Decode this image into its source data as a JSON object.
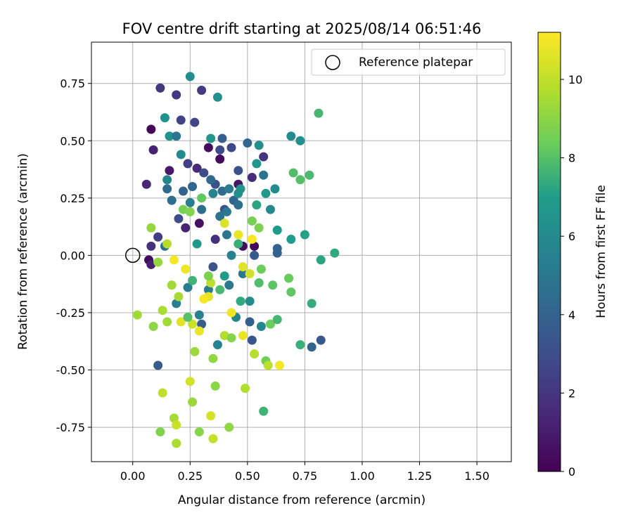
{
  "chart_data": {
    "type": "scatter",
    "title": "FOV centre drift starting at 2025/08/14 06:51:46",
    "xlabel": "Angular distance from reference (arcmin)",
    "ylabel": "Rotation from reference (arcmin)",
    "xlim": [
      -0.18,
      1.65
    ],
    "ylim": [
      -0.9,
      0.93
    ],
    "xticks": [
      "0.00",
      "0.25",
      "0.50",
      "0.75",
      "1.00",
      "1.25",
      "1.50"
    ],
    "yticks": [
      "-0.75",
      "-0.50",
      "-0.25",
      "0.00",
      "0.25",
      "0.50",
      "0.75"
    ],
    "grid": true,
    "legend": {
      "placement": "top-right",
      "entries": [
        "Reference platepar"
      ]
    },
    "reference_point": {
      "x": 0.0,
      "y": 0.0,
      "label": "Reference platepar"
    },
    "colorbar": {
      "label": "Hours from first FF file",
      "range": [
        0,
        11.2
      ],
      "ticks": [
        "0",
        "2",
        "4",
        "6",
        "8",
        "10"
      ],
      "colormap": [
        "#440154",
        "#482777",
        "#3f4a8a",
        "#31678e",
        "#26838f",
        "#1f9d8a",
        "#6cce5a",
        "#b6de2b",
        "#fee825"
      ]
    },
    "points": [
      {
        "x": 0.08,
        "y": 0.55,
        "h": 0.2
      },
      {
        "x": 0.38,
        "y": 0.42,
        "h": 0.4
      },
      {
        "x": 0.07,
        "y": -0.02,
        "h": 0.3
      },
      {
        "x": 0.48,
        "y": 0.04,
        "h": 0.5
      },
      {
        "x": 0.53,
        "y": 0.04,
        "h": 0.3
      },
      {
        "x": 0.29,
        "y": 0.14,
        "h": 0.6
      },
      {
        "x": 0.33,
        "y": 0.47,
        "h": 0.4
      },
      {
        "x": 0.46,
        "y": 0.31,
        "h": 0.7
      },
      {
        "x": 0.16,
        "y": 0.37,
        "h": 0.9
      },
      {
        "x": 0.09,
        "y": 0.46,
        "h": 1.2
      },
      {
        "x": 0.06,
        "y": 0.31,
        "h": 1.4
      },
      {
        "x": 0.08,
        "y": -0.04,
        "h": 1.1
      },
      {
        "x": 0.23,
        "y": 0.12,
        "h": 1.3
      },
      {
        "x": 0.28,
        "y": 0.38,
        "h": 1.5
      },
      {
        "x": 0.52,
        "y": 0.34,
        "h": 1.6
      },
      {
        "x": 0.36,
        "y": 0.07,
        "h": 1.7
      },
      {
        "x": 0.57,
        "y": 0.43,
        "h": 1.9
      },
      {
        "x": 0.12,
        "y": 0.73,
        "h": 2.0
      },
      {
        "x": 0.19,
        "y": 0.7,
        "h": 2.1
      },
      {
        "x": 0.3,
        "y": 0.72,
        "h": 2.2
      },
      {
        "x": 0.08,
        "y": 0.04,
        "h": 1.8
      },
      {
        "x": 0.11,
        "y": 0.08,
        "h": 2.3
      },
      {
        "x": 0.24,
        "y": 0.4,
        "h": 2.4
      },
      {
        "x": 0.21,
        "y": 0.59,
        "h": 2.5
      },
      {
        "x": 0.27,
        "y": 0.58,
        "h": 2.6
      },
      {
        "x": 0.43,
        "y": 0.47,
        "h": 2.7
      },
      {
        "x": 0.38,
        "y": 0.46,
        "h": 2.8
      },
      {
        "x": 0.31,
        "y": 0.36,
        "h": 2.9
      },
      {
        "x": 0.2,
        "y": 0.16,
        "h": 3.0
      },
      {
        "x": 0.36,
        "y": 0.31,
        "h": 3.1
      },
      {
        "x": 0.4,
        "y": 0.2,
        "h": 3.2
      },
      {
        "x": 0.46,
        "y": 0.37,
        "h": 3.3
      },
      {
        "x": 0.52,
        "y": -0.37,
        "h": 3.4
      },
      {
        "x": 0.82,
        "y": -0.37,
        "h": 3.5
      },
      {
        "x": 0.11,
        "y": -0.48,
        "h": 3.6
      },
      {
        "x": 0.3,
        "y": -0.3,
        "h": 3.7
      },
      {
        "x": 0.51,
        "y": -0.29,
        "h": 3.8
      },
      {
        "x": 0.63,
        "y": 0.03,
        "h": 3.9
      },
      {
        "x": 0.63,
        "y": 0.01,
        "h": 4.0
      },
      {
        "x": 0.78,
        "y": -0.4,
        "h": 4.1
      },
      {
        "x": 0.22,
        "y": 0.28,
        "h": 4.0
      },
      {
        "x": 0.26,
        "y": 0.3,
        "h": 4.2
      },
      {
        "x": 0.34,
        "y": 0.33,
        "h": 4.3
      },
      {
        "x": 0.39,
        "y": 0.28,
        "h": 4.4
      },
      {
        "x": 0.44,
        "y": 0.24,
        "h": 4.1
      },
      {
        "x": 0.3,
        "y": 0.2,
        "h": 4.5
      },
      {
        "x": 0.17,
        "y": 0.24,
        "h": 4.6
      },
      {
        "x": 0.14,
        "y": 0.04,
        "h": 4.7
      },
      {
        "x": 0.38,
        "y": 0.17,
        "h": 4.8
      },
      {
        "x": 0.41,
        "y": 0.09,
        "h": 4.9
      },
      {
        "x": 0.48,
        "y": -0.08,
        "h": 5.0
      },
      {
        "x": 0.42,
        "y": -0.13,
        "h": 5.1
      },
      {
        "x": 0.24,
        "y": -0.14,
        "h": 5.2
      },
      {
        "x": 0.33,
        "y": -0.15,
        "h": 5.3
      },
      {
        "x": 0.19,
        "y": -0.21,
        "h": 5.4
      },
      {
        "x": 0.29,
        "y": -0.26,
        "h": 5.5
      },
      {
        "x": 0.37,
        "y": -0.39,
        "h": 5.6
      },
      {
        "x": 0.45,
        "y": -0.27,
        "h": 5.7
      },
      {
        "x": 0.56,
        "y": -0.31,
        "h": 5.8
      },
      {
        "x": 0.6,
        "y": 0.2,
        "h": 5.9
      },
      {
        "x": 0.62,
        "y": 0.29,
        "h": 6.0
      },
      {
        "x": 0.69,
        "y": 0.52,
        "h": 6.1
      },
      {
        "x": 0.55,
        "y": 0.48,
        "h": 6.2
      },
      {
        "x": 0.73,
        "y": 0.5,
        "h": 6.3
      },
      {
        "x": 0.25,
        "y": 0.78,
        "h": 6.2
      },
      {
        "x": 0.37,
        "y": 0.69,
        "h": 6.3
      },
      {
        "x": 0.14,
        "y": 0.6,
        "h": 6.4
      },
      {
        "x": 0.16,
        "y": 0.52,
        "h": 6.5
      },
      {
        "x": 0.34,
        "y": 0.51,
        "h": 6.6
      },
      {
        "x": 0.54,
        "y": 0.4,
        "h": 6.7
      },
      {
        "x": 0.58,
        "y": 0.27,
        "h": 6.8
      },
      {
        "x": 0.63,
        "y": 0.11,
        "h": 6.9
      },
      {
        "x": 0.69,
        "y": 0.07,
        "h": 7.0
      },
      {
        "x": 0.75,
        "y": 0.09,
        "h": 7.1
      },
      {
        "x": 0.82,
        "y": -0.02,
        "h": 7.2
      },
      {
        "x": 0.88,
        "y": 0.01,
        "h": 7.3
      },
      {
        "x": 0.78,
        "y": -0.21,
        "h": 7.4
      },
      {
        "x": 0.73,
        "y": -0.39,
        "h": 7.5
      },
      {
        "x": 0.57,
        "y": -0.68,
        "h": 7.6
      },
      {
        "x": 0.81,
        "y": 0.62,
        "h": 7.7
      },
      {
        "x": 0.77,
        "y": 0.35,
        "h": 7.8
      },
      {
        "x": 0.7,
        "y": 0.36,
        "h": 7.9
      },
      {
        "x": 0.73,
        "y": 0.33,
        "h": 8.0
      },
      {
        "x": 0.61,
        "y": -0.13,
        "h": 8.1
      },
      {
        "x": 0.69,
        "y": -0.16,
        "h": 8.2
      },
      {
        "x": 0.68,
        "y": -0.1,
        "h": 8.3
      },
      {
        "x": 0.6,
        "y": -0.3,
        "h": 8.4
      },
      {
        "x": 0.58,
        "y": -0.46,
        "h": 8.5
      },
      {
        "x": 0.52,
        "y": 0.15,
        "h": 8.6
      },
      {
        "x": 0.55,
        "y": 0.12,
        "h": 8.7
      },
      {
        "x": 0.12,
        "y": -0.77,
        "h": 8.8
      },
      {
        "x": 0.29,
        "y": -0.77,
        "h": 8.9
      },
      {
        "x": 0.36,
        "y": -0.57,
        "h": 9.0
      },
      {
        "x": 0.42,
        "y": -0.75,
        "h": 9.1
      },
      {
        "x": 0.08,
        "y": 0.12,
        "h": 9.2
      },
      {
        "x": 0.26,
        "y": -0.64,
        "h": 9.3
      },
      {
        "x": 0.02,
        "y": -0.26,
        "h": 9.4
      },
      {
        "x": 0.18,
        "y": -0.71,
        "h": 9.5
      },
      {
        "x": 0.19,
        "y": -0.82,
        "h": 9.6
      },
      {
        "x": 0.49,
        "y": -0.58,
        "h": 9.7
      },
      {
        "x": 0.53,
        "y": -0.43,
        "h": 9.8
      },
      {
        "x": 0.59,
        "y": -0.48,
        "h": 9.9
      },
      {
        "x": 0.13,
        "y": -0.6,
        "h": 10.0
      },
      {
        "x": 0.35,
        "y": -0.8,
        "h": 10.1
      },
      {
        "x": 0.19,
        "y": -0.74,
        "h": 10.2
      },
      {
        "x": 0.25,
        "y": -0.55,
        "h": 10.3
      },
      {
        "x": 0.34,
        "y": -0.7,
        "h": 10.4
      },
      {
        "x": 0.4,
        "y": 0.14,
        "h": 10.5
      },
      {
        "x": 0.48,
        "y": -0.05,
        "h": 10.6
      },
      {
        "x": 0.33,
        "y": -0.18,
        "h": 10.7
      },
      {
        "x": 0.29,
        "y": -0.33,
        "h": 10.8
      },
      {
        "x": 0.43,
        "y": -0.25,
        "h": 10.9
      },
      {
        "x": 0.64,
        "y": -0.48,
        "h": 11.0
      },
      {
        "x": 0.52,
        "y": 0.07,
        "h": 11.1
      },
      {
        "x": 0.46,
        "y": 0.09,
        "h": 10.8
      },
      {
        "x": 0.23,
        "y": -0.06,
        "h": 10.9
      },
      {
        "x": 0.18,
        "y": -0.02,
        "h": 11.0
      },
      {
        "x": 0.31,
        "y": -0.19,
        "h": 11.1
      },
      {
        "x": 0.15,
        "y": 0.05,
        "h": 9.8
      },
      {
        "x": 0.13,
        "y": -0.24,
        "h": 9.6
      },
      {
        "x": 0.15,
        "y": -0.29,
        "h": 9.4
      },
      {
        "x": 0.21,
        "y": -0.29,
        "h": 10.6
      },
      {
        "x": 0.26,
        "y": -0.3,
        "h": 10.2
      },
      {
        "x": 0.34,
        "y": -0.12,
        "h": 9.9
      },
      {
        "x": 0.4,
        "y": -0.35,
        "h": 9.7
      },
      {
        "x": 0.48,
        "y": -0.35,
        "h": 10.8
      },
      {
        "x": 0.51,
        "y": -0.08,
        "h": 10.3
      },
      {
        "x": 0.2,
        "y": -0.18,
        "h": 9.5
      },
      {
        "x": 0.27,
        "y": -0.42,
        "h": 9.3
      },
      {
        "x": 0.35,
        "y": -0.45,
        "h": 9.1
      },
      {
        "x": 0.43,
        "y": -0.36,
        "h": 8.9
      },
      {
        "x": 0.22,
        "y": 0.2,
        "h": 8.6
      },
      {
        "x": 0.25,
        "y": 0.19,
        "h": 8.8
      },
      {
        "x": 0.3,
        "y": 0.25,
        "h": 8.2
      },
      {
        "x": 0.54,
        "y": 0.22,
        "h": 7.2
      },
      {
        "x": 0.46,
        "y": 0.05,
        "h": 7.5
      },
      {
        "x": 0.38,
        "y": -0.15,
        "h": 7.8
      },
      {
        "x": 0.55,
        "y": -0.12,
        "h": 7.9
      },
      {
        "x": 0.56,
        "y": -0.06,
        "h": 8.4
      },
      {
        "x": 0.33,
        "y": -0.09,
        "h": 8.7
      },
      {
        "x": 0.09,
        "y": -0.31,
        "h": 9.0
      },
      {
        "x": 0.11,
        "y": -0.03,
        "h": 9.2
      },
      {
        "x": 0.17,
        "y": -0.13,
        "h": 9.4
      },
      {
        "x": 0.28,
        "y": 0.05,
        "h": 6.8
      },
      {
        "x": 0.21,
        "y": 0.44,
        "h": 6.0
      },
      {
        "x": 0.47,
        "y": 0.29,
        "h": 6.5
      },
      {
        "x": 0.35,
        "y": 0.27,
        "h": 5.6
      },
      {
        "x": 0.41,
        "y": 0.19,
        "h": 5.1
      },
      {
        "x": 0.46,
        "y": 0.22,
        "h": 4.6
      },
      {
        "x": 0.57,
        "y": 0.35,
        "h": 4.8
      },
      {
        "x": 0.5,
        "y": 0.49,
        "h": 4.2
      },
      {
        "x": 0.53,
        "y": 0.0,
        "h": 3.6
      },
      {
        "x": 0.35,
        "y": -0.05,
        "h": 3.2
      },
      {
        "x": 0.39,
        "y": 0.51,
        "h": 3.8
      },
      {
        "x": 0.15,
        "y": 0.29,
        "h": 4.4
      },
      {
        "x": 0.19,
        "y": 0.52,
        "h": 4.9
      },
      {
        "x": 0.25,
        "y": 0.23,
        "h": 5.3
      },
      {
        "x": 0.43,
        "y": 0.0,
        "h": 5.5
      },
      {
        "x": 0.51,
        "y": -0.2,
        "h": 6.1
      },
      {
        "x": 0.4,
        "y": -0.09,
        "h": 7.0
      },
      {
        "x": 0.47,
        "y": -0.2,
        "h": 7.3
      },
      {
        "x": 0.26,
        "y": -0.11,
        "h": 7.6
      },
      {
        "x": 0.24,
        "y": -0.27,
        "h": 8.0
      },
      {
        "x": 0.15,
        "y": 0.33,
        "h": 5.8
      },
      {
        "x": 0.63,
        "y": -0.28,
        "h": 7.7
      },
      {
        "x": 0.46,
        "y": 0.27,
        "h": 6.3
      },
      {
        "x": 0.42,
        "y": 0.29,
        "h": 5.2
      }
    ]
  }
}
